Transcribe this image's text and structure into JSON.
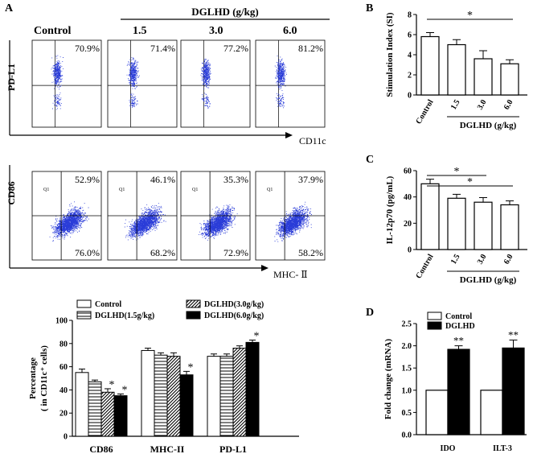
{
  "panels": {
    "A": {
      "letter": "A",
      "dose_header": "DGLHD (g/kg)",
      "columns": [
        "Control",
        "1.5",
        "3.0",
        "6.0"
      ],
      "row1": {
        "y_label": "PD-L1",
        "x_label": "CD11c",
        "percents": [
          "70.9%",
          "71.4%",
          "77.2%",
          "81.2%"
        ]
      },
      "row2": {
        "y_label": "CD86",
        "x_label": "MHC- Ⅱ",
        "upper_percents": [
          "52.9%",
          "46.1%",
          "35.3%",
          "37.9%"
        ],
        "lower_percents": [
          "76.0%",
          "68.2%",
          "72.9%",
          "58.2%"
        ],
        "quadrant_label": "Q1"
      }
    },
    "B": {
      "letter": "B"
    },
    "C": {
      "letter": "C"
    },
    "D": {
      "letter": "D"
    }
  },
  "chart_data": [
    {
      "id": "B",
      "type": "bar",
      "categories": [
        "Control",
        "1.5",
        "3.0",
        "6.0"
      ],
      "values": [
        5.8,
        5.0,
        3.6,
        3.1
      ],
      "errors": [
        0.4,
        0.5,
        0.8,
        0.4
      ],
      "ylabel": "Stimulation Index (SI)",
      "xgroup_label": "DGLHD (g/kg)",
      "ylim": [
        0,
        8
      ],
      "yticks": [
        0,
        2,
        4,
        6,
        8
      ],
      "significance": [
        {
          "from": 0,
          "to": 3,
          "label": "*"
        }
      ]
    },
    {
      "id": "C",
      "type": "bar",
      "categories": [
        "Control",
        "1.5",
        "3.0",
        "6.0"
      ],
      "values": [
        50,
        39,
        36,
        34
      ],
      "errors": [
        3.5,
        3,
        3.5,
        3
      ],
      "ylabel": "IL-12p70 (pg/mL)",
      "xgroup_label": "DGLHD (g/kg)",
      "ylim": [
        0,
        60
      ],
      "yticks": [
        0,
        20,
        40,
        60
      ],
      "significance": [
        {
          "from": 0,
          "to": 2,
          "label": "*"
        },
        {
          "from": 0,
          "to": 3,
          "label": "*"
        }
      ]
    },
    {
      "id": "A-bar",
      "type": "bar",
      "categories": [
        "CD86",
        "MHC-II",
        "PD-L1"
      ],
      "series": [
        {
          "name": "Control",
          "values": [
            55,
            74,
            69
          ],
          "errors": [
            3,
            2,
            2
          ],
          "sig": [
            false,
            false,
            false
          ]
        },
        {
          "name": "DGLHD(1.5g/kg)",
          "values": [
            47,
            70,
            69
          ],
          "errors": [
            1.5,
            2,
            2
          ],
          "sig": [
            false,
            false,
            false
          ]
        },
        {
          "name": "DGLHD(3.0g/kg)",
          "values": [
            38,
            69,
            76
          ],
          "errors": [
            3,
            3,
            2
          ],
          "sig": [
            true,
            false,
            false
          ]
        },
        {
          "name": "DGLHD(6.0g/kg)",
          "values": [
            35,
            53,
            81
          ],
          "errors": [
            1.5,
            3,
            2
          ],
          "sig": [
            true,
            true,
            true
          ]
        }
      ],
      "ylabel_line1": "Percentage",
      "ylabel_line2": "( in CD11c⁺ cells)",
      "ylim": [
        0,
        100
      ],
      "yticks": [
        0,
        20,
        40,
        60,
        80,
        100
      ],
      "sig_label": "*"
    },
    {
      "id": "D",
      "type": "bar",
      "categories": [
        "IDO",
        "ILT-3"
      ],
      "series": [
        {
          "name": "Control",
          "values": [
            1.0,
            1.0
          ],
          "errors": [
            0,
            0
          ]
        },
        {
          "name": "DGLHD",
          "values": [
            1.92,
            1.95
          ],
          "errors": [
            0.08,
            0.18
          ]
        }
      ],
      "ylabel": "Fold change (mRNA)",
      "ylim": [
        0,
        2.5
      ],
      "yticks": [
        "0.0",
        "0.5",
        "1.0",
        "1.5",
        "2.0",
        "2.5"
      ],
      "sig_label": "**"
    }
  ]
}
